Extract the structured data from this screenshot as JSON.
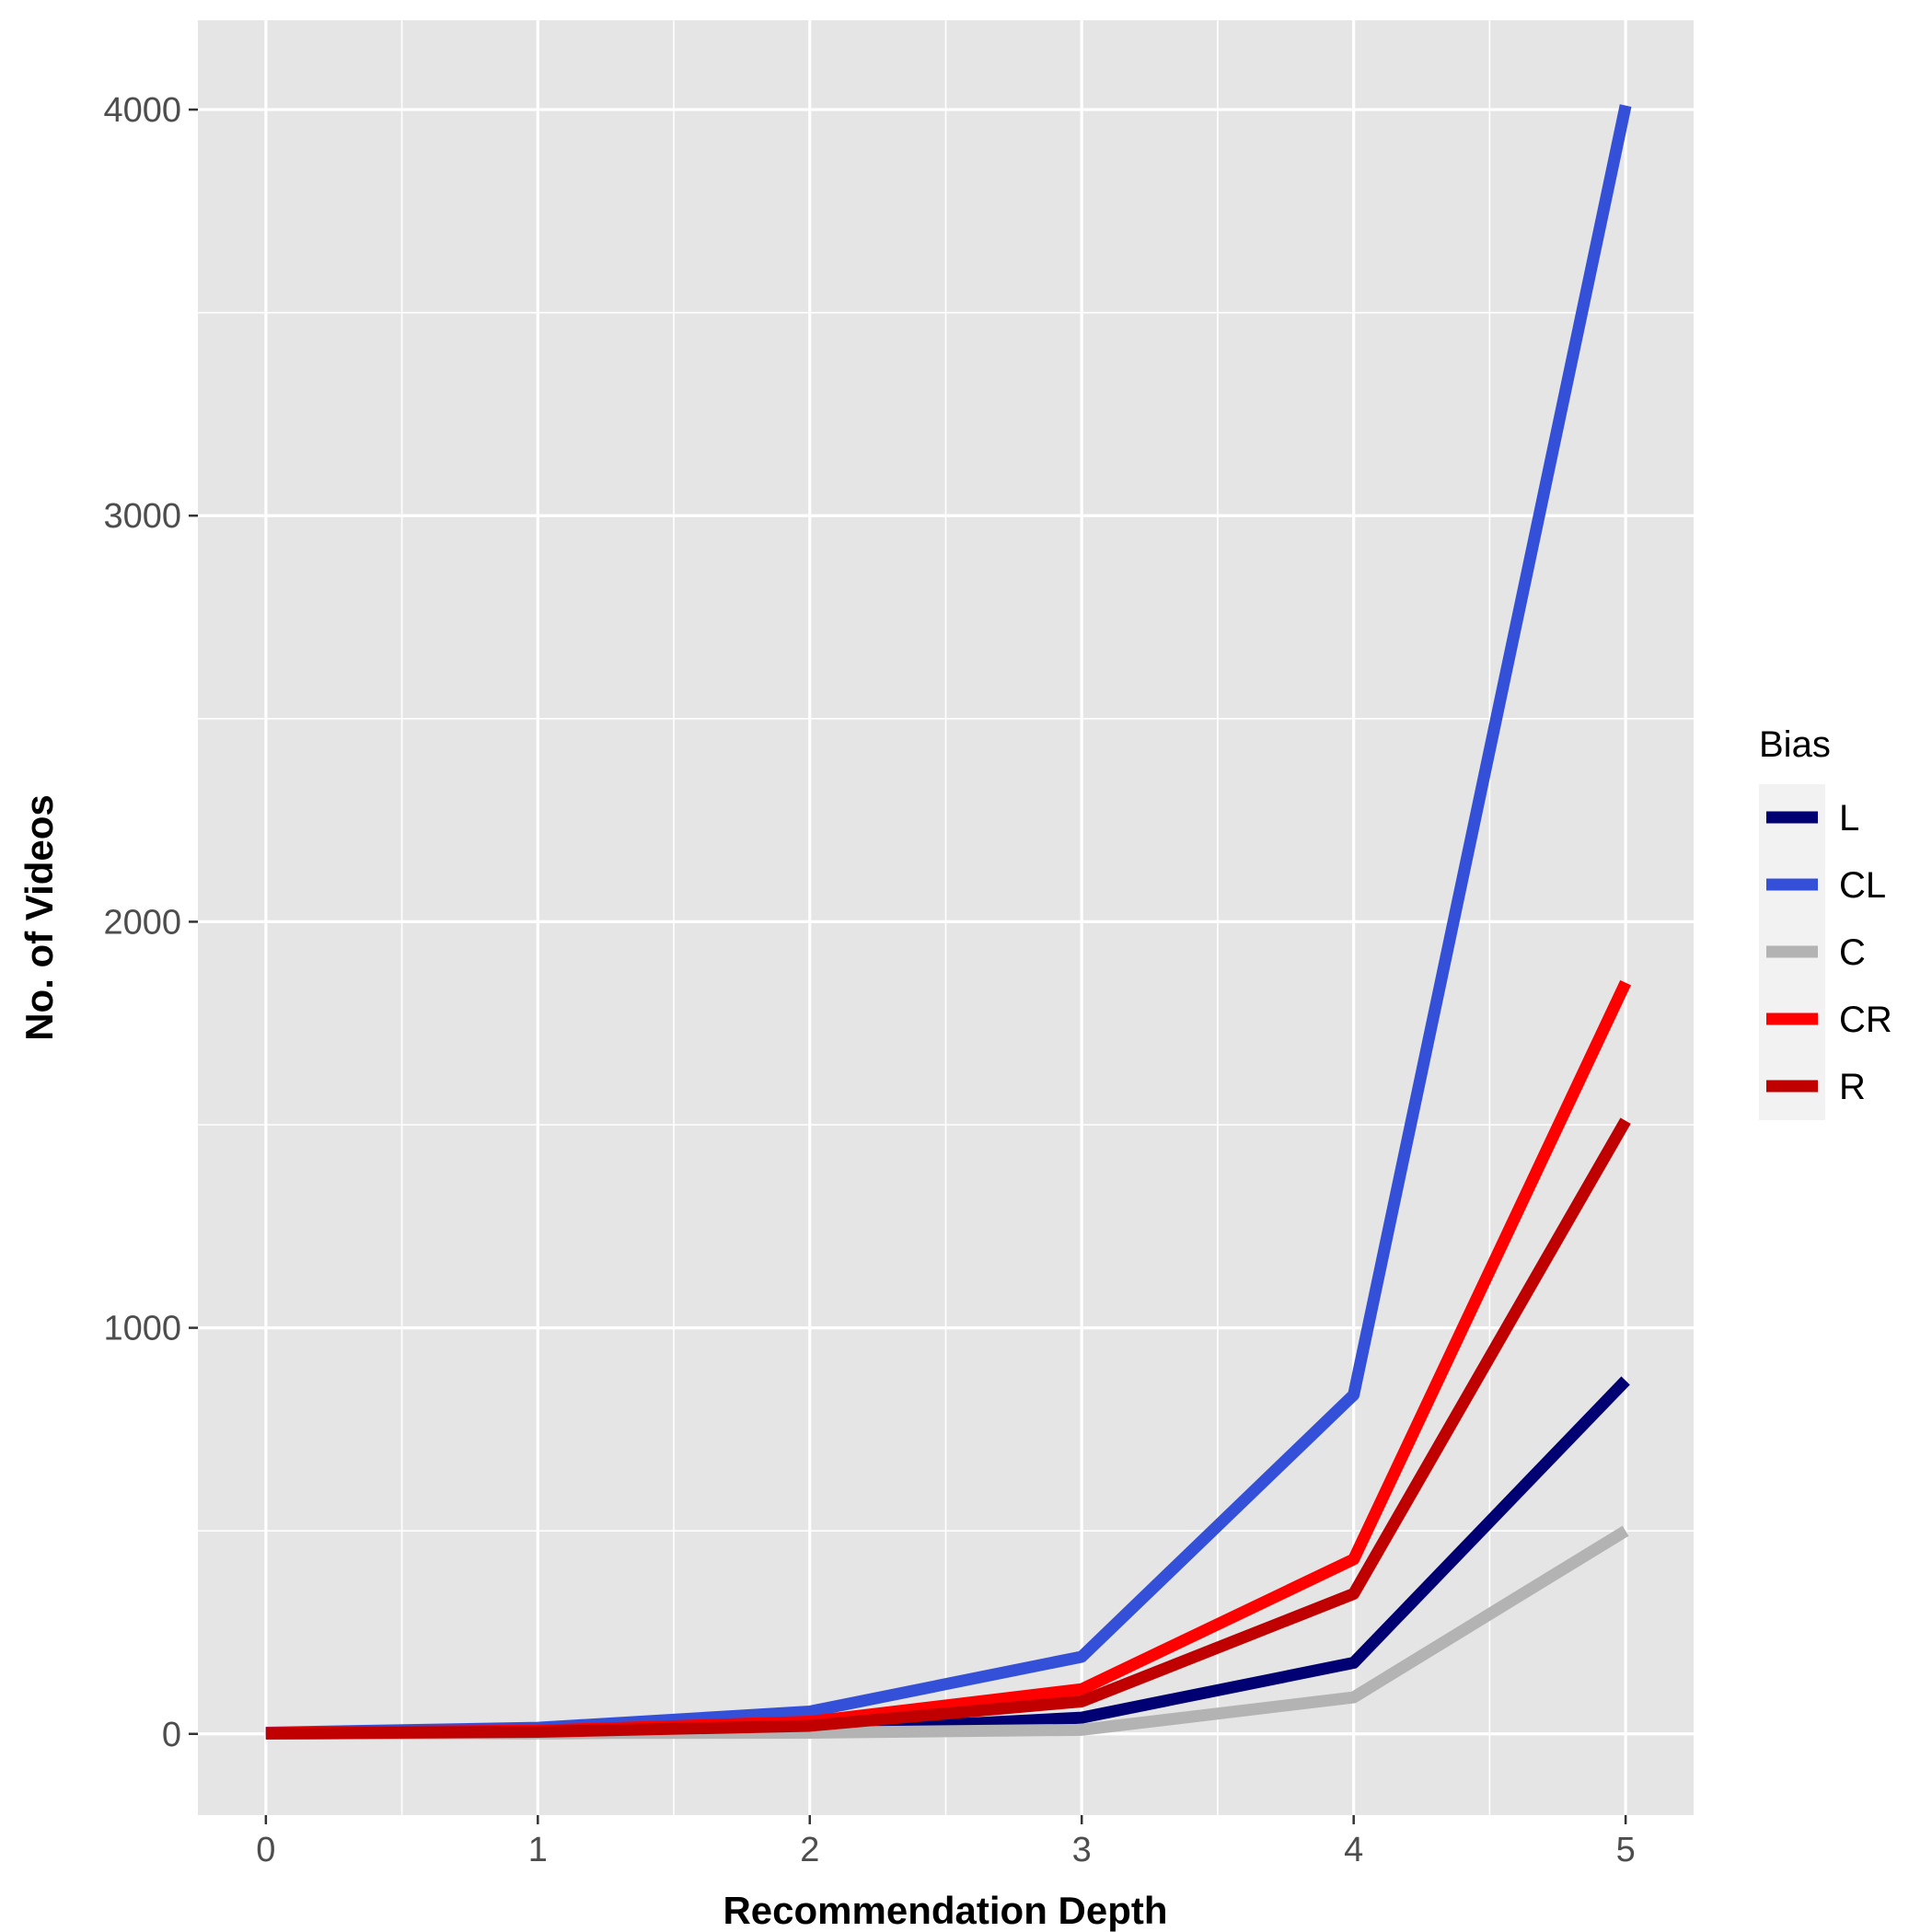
{
  "chart_data": {
    "type": "line",
    "title": "",
    "xlabel": "Recommendation Depth",
    "ylabel": "No. of Videos",
    "x": [
      0,
      1,
      2,
      3,
      4,
      5
    ],
    "x_ticks": [
      "0",
      "1",
      "2",
      "3",
      "4",
      "5"
    ],
    "xlim": [
      -0.25,
      5.25
    ],
    "y_ticks": [
      "0",
      "1000",
      "2000",
      "3000",
      "4000"
    ],
    "ylim": [
      -200,
      4220
    ],
    "grid": true,
    "legend": {
      "title": "Bias",
      "position": "right"
    },
    "series": [
      {
        "name": "L",
        "color": "#000073",
        "values": [
          1,
          2,
          5,
          40,
          175,
          870
        ]
      },
      {
        "name": "CL",
        "color": "#3550D8",
        "values": [
          3,
          15,
          55,
          190,
          835,
          4010
        ]
      },
      {
        "name": "C",
        "color": "#B3B3B3",
        "values": [
          1,
          2,
          3,
          10,
          90,
          500
        ]
      },
      {
        "name": "CR",
        "color": "#FF0000",
        "values": [
          2,
          8,
          30,
          110,
          430,
          1850
        ]
      },
      {
        "name": "R",
        "color": "#C00000",
        "values": [
          1,
          5,
          20,
          80,
          345,
          1510
        ]
      }
    ]
  }
}
